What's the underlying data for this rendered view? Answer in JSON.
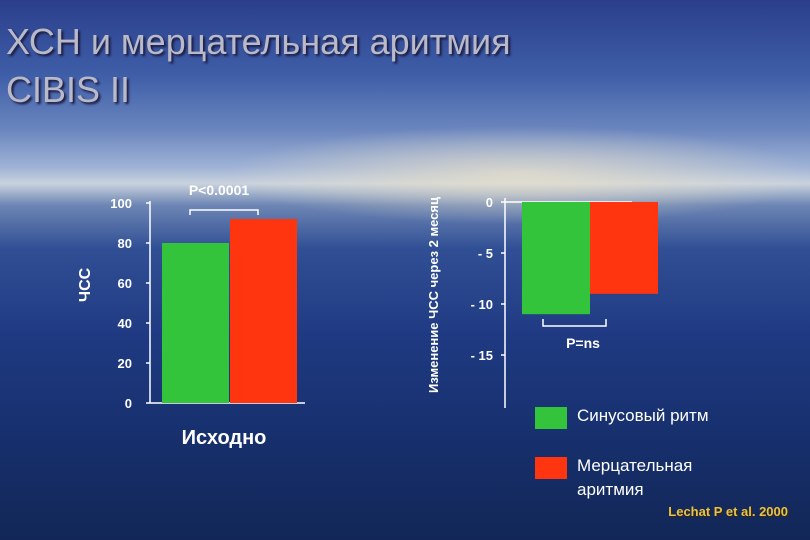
{
  "slide": {
    "title_line1": "ХСН и мерцательная аритмия",
    "title_line2": "CIBIS II",
    "citation": "Lechat P et al. 2000"
  },
  "colors": {
    "sinus": "#33c43b",
    "af": "#ff3510",
    "text": "#ffffff"
  },
  "legend": [
    {
      "label": "Синусовый ритм",
      "color": "#33c43b"
    },
    {
      "label": "Мерцательная аритмия",
      "color": "#ff3510"
    }
  ],
  "chart_data": [
    {
      "type": "bar",
      "categories": [
        "Исходно"
      ],
      "series": [
        {
          "values": [
            80
          ]
        },
        {
          "values": [
            92
          ]
        }
      ],
      "ylabel": "ЧСС",
      "xlabel": "",
      "ylim": [
        0,
        100
      ],
      "yticks": [
        0,
        20,
        40,
        60,
        80,
        100
      ],
      "annotation": "P<0.0001"
    },
    {
      "type": "bar",
      "categories": [
        ""
      ],
      "series": [
        {
          "values": [
            -11
          ]
        },
        {
          "values": [
            -9
          ]
        }
      ],
      "ylabel": "Изменение ЧСС через 2 месяц",
      "xlabel": "",
      "ylim": [
        -20,
        0
      ],
      "yticks": [
        0,
        -5,
        -10,
        -15
      ],
      "ytick_labels": [
        "0",
        "- 5",
        "- 10",
        "- 15"
      ],
      "annotation": "P=ns"
    }
  ]
}
